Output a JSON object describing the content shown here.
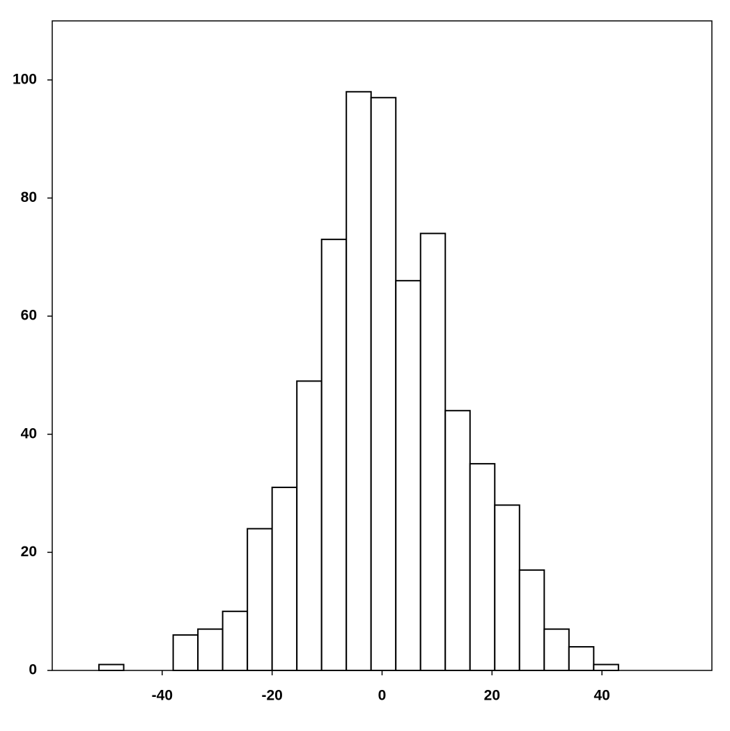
{
  "chart_data": {
    "type": "histogram",
    "bins": [
      -51.5,
      -47,
      -42.5,
      -38,
      -33.5,
      -29,
      -24.5,
      -20,
      -15.5,
      -11,
      -6.5,
      -2,
      2.5,
      7,
      11.5,
      16,
      20.5,
      25,
      29.5,
      34,
      38.5,
      43
    ],
    "values": [
      1,
      0,
      0,
      6,
      7,
      10,
      24,
      31,
      49,
      73,
      98,
      97,
      66,
      74,
      44,
      35,
      28,
      17,
      7,
      4,
      1
    ],
    "color": "#ffffff",
    "xlim": [
      -60,
      60
    ],
    "ylim": [
      0,
      110
    ],
    "xticks": [
      -40,
      -20,
      0,
      20,
      40
    ],
    "yticks": [
      0,
      20,
      40,
      60,
      80,
      100
    ],
    "grid": false
  }
}
